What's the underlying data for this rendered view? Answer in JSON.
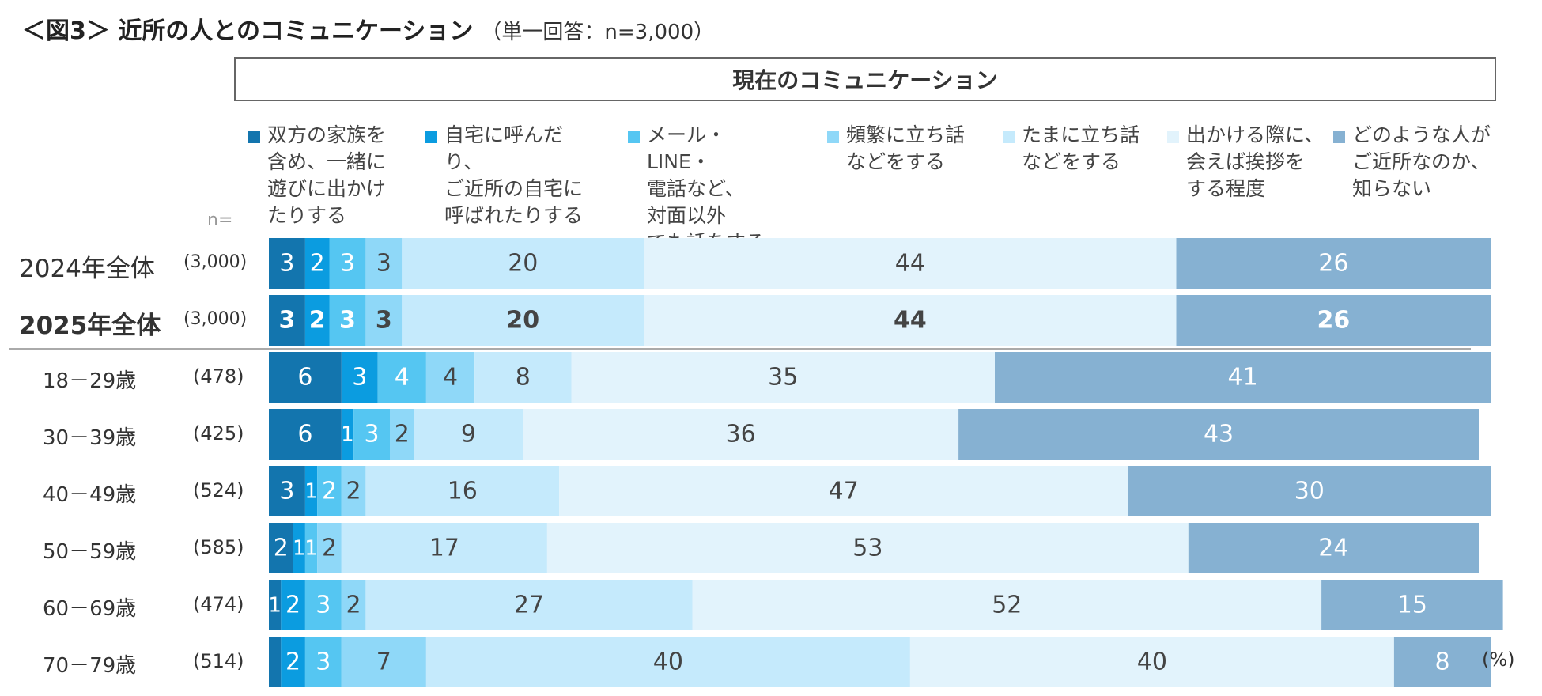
{
  "header": {
    "title": "＜図3＞ 近所の人とのコミュニケーション",
    "subtitle": "（単一回答：n=3,000）"
  },
  "section_title": "現在のコミュニケーション",
  "n_prefix": "n=",
  "unit": "(%)",
  "chart_data": {
    "type": "bar",
    "orientation": "horizontal",
    "stacked": true,
    "percent": true,
    "title": "＜図3＞ 近所の人とのコミュニケーション",
    "xlim": [
      0,
      100
    ],
    "categories": [
      "2024年全体",
      "2025年全体",
      "18－29歳",
      "30－39歳",
      "40－49歳",
      "50－59歳",
      "60－69歳",
      "70－79歳"
    ],
    "n": [
      "(3,000)",
      "(3,000)",
      "(478)",
      "(425)",
      "(524)",
      "(585)",
      "(474)",
      "(514)"
    ],
    "emphasis_row": 1,
    "separator_after_row": 1,
    "series": [
      {
        "name": "双方の家族を\n含め、一緒に\n遊びに出かけ\nたりする",
        "color": "#1375ae",
        "text_color": "#ffffff",
        "values": [
          3,
          3,
          6,
          6,
          3,
          2,
          1,
          1
        ],
        "labels": [
          "3",
          "3",
          "6",
          "6",
          "3",
          "2",
          "1",
          ""
        ]
      },
      {
        "name": "自宅に呼んだり、\nご近所の自宅に\n呼ばれたりする",
        "color": "#0b9ce0",
        "text_color": "#ffffff",
        "values": [
          2,
          2,
          3,
          1,
          1,
          1,
          2,
          2
        ],
        "labels": [
          "2",
          "2",
          "3",
          "1",
          "1",
          "1",
          "2",
          "2"
        ]
      },
      {
        "name": "メール・LINE・\n電話など、\n対面以外\nでも話をする",
        "color": "#55c6f2",
        "text_color": "#ffffff",
        "values": [
          3,
          3,
          4,
          3,
          2,
          1,
          3,
          3
        ],
        "labels": [
          "3",
          "3",
          "4",
          "3",
          "2",
          "1",
          "3",
          "3"
        ]
      },
      {
        "name": "頻繁に立ち話\nなどをする",
        "color": "#8fd8f8",
        "text_color": "#444444",
        "values": [
          3,
          3,
          4,
          2,
          2,
          2,
          2,
          7
        ],
        "labels": [
          "3",
          "3",
          "4",
          "2",
          "2",
          "2",
          "2",
          "7"
        ]
      },
      {
        "name": "たまに立ち話\nなどをする",
        "color": "#c5eafc",
        "text_color": "#444444",
        "values": [
          20,
          20,
          8,
          9,
          16,
          17,
          27,
          40
        ],
        "labels": [
          "20",
          "20",
          "8",
          "9",
          "16",
          "17",
          "27",
          "40"
        ]
      },
      {
        "name": "出かける際に、\n会えば挨拶を\nする程度",
        "color": "#e2f3fc",
        "text_color": "#444444",
        "values": [
          44,
          44,
          35,
          36,
          47,
          53,
          52,
          40
        ],
        "labels": [
          "44",
          "44",
          "35",
          "36",
          "47",
          "53",
          "52",
          "40"
        ]
      },
      {
        "name": "どのような人が\nご近所なのか、\n知らない",
        "color": "#86b1d2",
        "text_color": "#ffffff",
        "values": [
          26,
          26,
          41,
          43,
          30,
          24,
          15,
          8
        ],
        "labels": [
          "26",
          "26",
          "41",
          "43",
          "30",
          "24",
          "15",
          "8"
        ]
      }
    ]
  }
}
